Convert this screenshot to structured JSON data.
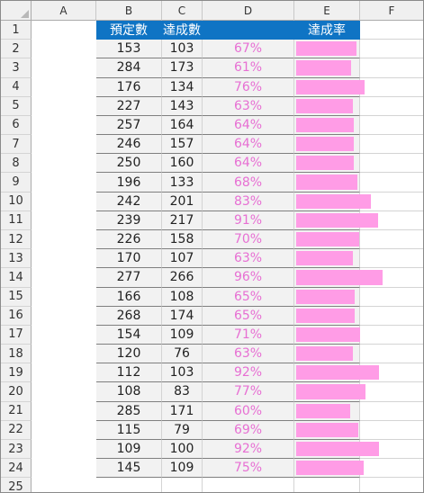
{
  "columns": [
    "A",
    "B",
    "C",
    "D",
    "E",
    "F"
  ],
  "header": {
    "col_a": "預定數",
    "col_b": "達成數",
    "col_c": "",
    "col_d": "達成率"
  },
  "rows": [
    {
      "num": "2",
      "a": "153",
      "b": "103",
      "c": "67%",
      "rate": 0.67
    },
    {
      "num": "3",
      "a": "284",
      "b": "173",
      "c": "61%",
      "rate": 0.61
    },
    {
      "num": "4",
      "a": "176",
      "b": "134",
      "c": "76%",
      "rate": 0.76
    },
    {
      "num": "5",
      "a": "227",
      "b": "143",
      "c": "63%",
      "rate": 0.63
    },
    {
      "num": "6",
      "a": "257",
      "b": "164",
      "c": "64%",
      "rate": 0.64
    },
    {
      "num": "7",
      "a": "246",
      "b": "157",
      "c": "64%",
      "rate": 0.64
    },
    {
      "num": "8",
      "a": "250",
      "b": "160",
      "c": "64%",
      "rate": 0.64
    },
    {
      "num": "9",
      "a": "196",
      "b": "133",
      "c": "68%",
      "rate": 0.68
    },
    {
      "num": "10",
      "a": "242",
      "b": "201",
      "c": "83%",
      "rate": 0.83
    },
    {
      "num": "11",
      "a": "239",
      "b": "217",
      "c": "91%",
      "rate": 0.91
    },
    {
      "num": "12",
      "a": "226",
      "b": "158",
      "c": "70%",
      "rate": 0.7
    },
    {
      "num": "13",
      "a": "170",
      "b": "107",
      "c": "63%",
      "rate": 0.63
    },
    {
      "num": "14",
      "a": "277",
      "b": "266",
      "c": "96%",
      "rate": 0.96
    },
    {
      "num": "15",
      "a": "166",
      "b": "108",
      "c": "65%",
      "rate": 0.65
    },
    {
      "num": "16",
      "a": "268",
      "b": "174",
      "c": "65%",
      "rate": 0.65
    },
    {
      "num": "17",
      "a": "154",
      "b": "109",
      "c": "71%",
      "rate": 0.71
    },
    {
      "num": "18",
      "a": "120",
      "b": "76",
      "c": "63%",
      "rate": 0.63
    },
    {
      "num": "19",
      "a": "112",
      "b": "103",
      "c": "92%",
      "rate": 0.92
    },
    {
      "num": "20",
      "a": "108",
      "b": "83",
      "c": "77%",
      "rate": 0.77
    },
    {
      "num": "21",
      "a": "285",
      "b": "171",
      "c": "60%",
      "rate": 0.6
    },
    {
      "num": "22",
      "a": "115",
      "b": "79",
      "c": "69%",
      "rate": 0.69
    },
    {
      "num": "23",
      "a": "109",
      "b": "100",
      "c": "92%",
      "rate": 0.92
    },
    {
      "num": "24",
      "a": "145",
      "b": "109",
      "c": "75%",
      "rate": 0.75
    }
  ],
  "header_row_num": "1",
  "empty_row_num": "25",
  "colors": {
    "header_fill": "#0f74c4",
    "bar_fill": "#ff9ce6",
    "rate_text": "#e76fd3"
  }
}
